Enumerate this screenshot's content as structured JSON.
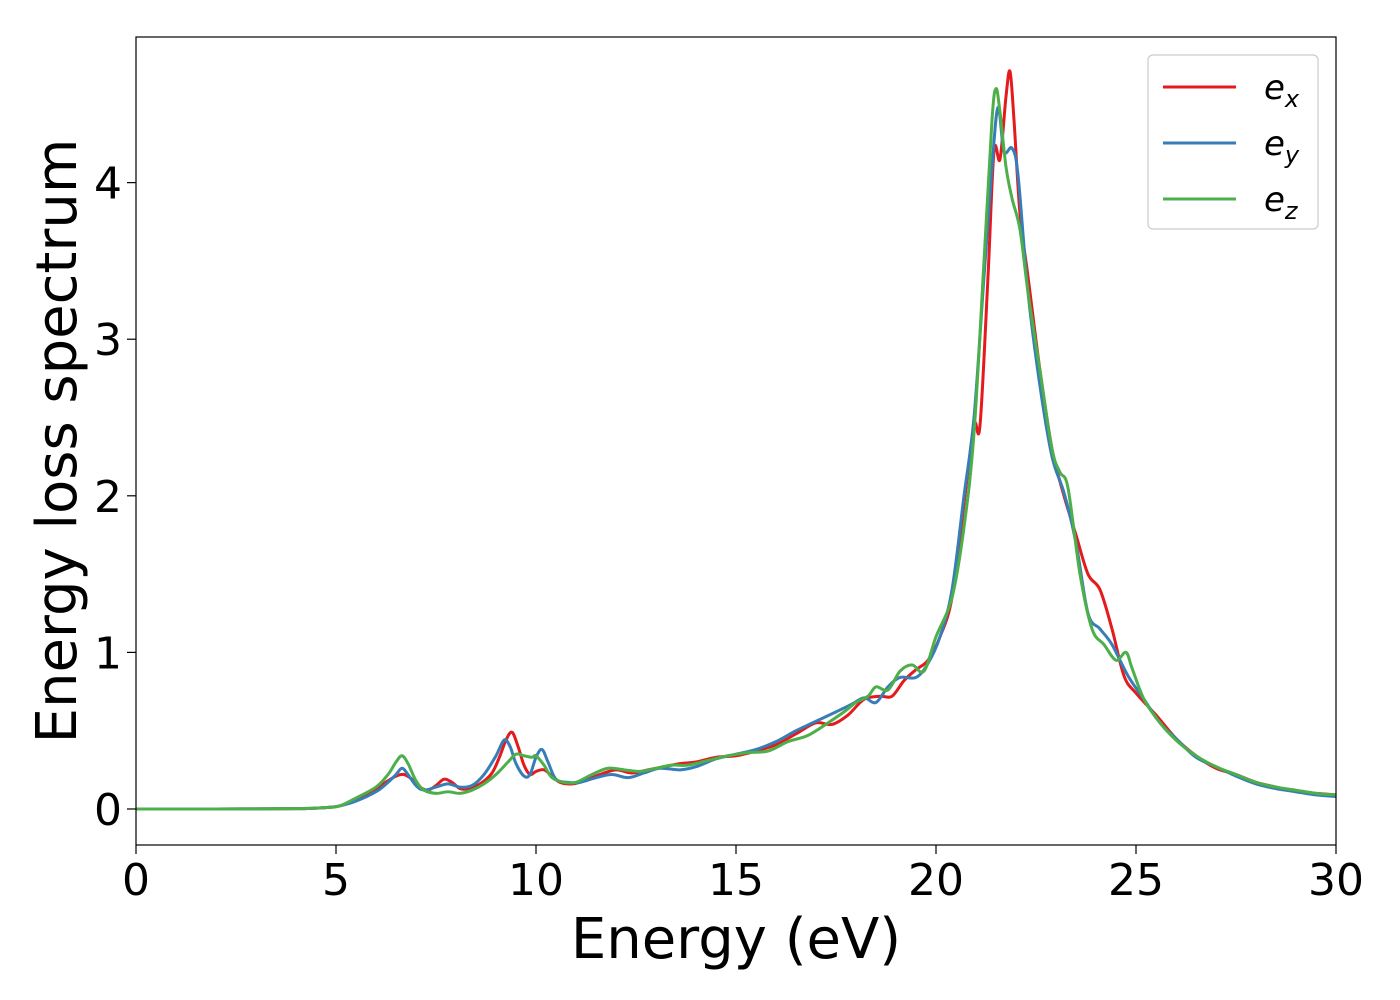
{
  "chart_data": {
    "type": "line",
    "title": "",
    "xlabel": "Energy (eV)",
    "ylabel": "Energy loss spectrum",
    "xlim": [
      0,
      30
    ],
    "ylim": [
      -0.23,
      4.93
    ],
    "xticks": [
      0,
      5,
      10,
      15,
      20,
      25,
      30
    ],
    "yticks": [
      0,
      1,
      2,
      3,
      4
    ],
    "grid": false,
    "legend_position": "top-right",
    "series": [
      {
        "name": "e",
        "subscript": "x",
        "color": "#e41a1c",
        "points": [
          [
            0,
            0
          ],
          [
            2,
            0
          ],
          [
            4,
            0.002
          ],
          [
            4.8,
            0.01
          ],
          [
            5.1,
            0.02
          ],
          [
            5.5,
            0.06
          ],
          [
            6.0,
            0.13
          ],
          [
            6.3,
            0.18
          ],
          [
            6.5,
            0.21
          ],
          [
            6.7,
            0.22
          ],
          [
            6.9,
            0.19
          ],
          [
            7.1,
            0.14
          ],
          [
            7.3,
            0.12
          ],
          [
            7.5,
            0.15
          ],
          [
            7.7,
            0.19
          ],
          [
            7.9,
            0.17
          ],
          [
            8.1,
            0.13
          ],
          [
            8.3,
            0.13
          ],
          [
            8.6,
            0.16
          ],
          [
            8.9,
            0.23
          ],
          [
            9.1,
            0.34
          ],
          [
            9.25,
            0.44
          ],
          [
            9.4,
            0.49
          ],
          [
            9.55,
            0.4
          ],
          [
            9.7,
            0.28
          ],
          [
            9.85,
            0.22
          ],
          [
            10.0,
            0.24
          ],
          [
            10.2,
            0.25
          ],
          [
            10.4,
            0.21
          ],
          [
            10.6,
            0.17
          ],
          [
            10.9,
            0.16
          ],
          [
            11.2,
            0.18
          ],
          [
            11.6,
            0.22
          ],
          [
            12.0,
            0.25
          ],
          [
            12.4,
            0.23
          ],
          [
            12.8,
            0.25
          ],
          [
            13.2,
            0.27
          ],
          [
            13.6,
            0.29
          ],
          [
            14.0,
            0.3
          ],
          [
            14.5,
            0.33
          ],
          [
            15.0,
            0.34
          ],
          [
            15.5,
            0.37
          ],
          [
            16.0,
            0.41
          ],
          [
            16.5,
            0.48
          ],
          [
            17.0,
            0.55
          ],
          [
            17.4,
            0.54
          ],
          [
            17.8,
            0.6
          ],
          [
            18.2,
            0.7
          ],
          [
            18.6,
            0.72
          ],
          [
            18.9,
            0.72
          ],
          [
            19.2,
            0.82
          ],
          [
            19.5,
            0.89
          ],
          [
            19.8,
            0.95
          ],
          [
            20.1,
            1.1
          ],
          [
            20.4,
            1.35
          ],
          [
            20.7,
            1.95
          ],
          [
            20.95,
            2.45
          ],
          [
            21.1,
            2.45
          ],
          [
            21.3,
            3.4
          ],
          [
            21.45,
            4.2
          ],
          [
            21.6,
            4.15
          ],
          [
            21.75,
            4.55
          ],
          [
            21.85,
            4.71
          ],
          [
            21.95,
            4.4
          ],
          [
            22.1,
            3.8
          ],
          [
            22.3,
            3.4
          ],
          [
            22.6,
            2.8
          ],
          [
            22.9,
            2.3
          ],
          [
            23.2,
            2.0
          ],
          [
            23.5,
            1.75
          ],
          [
            23.8,
            1.5
          ],
          [
            24.1,
            1.4
          ],
          [
            24.4,
            1.15
          ],
          [
            24.7,
            0.85
          ],
          [
            25.0,
            0.74
          ],
          [
            25.5,
            0.6
          ],
          [
            26.0,
            0.45
          ],
          [
            26.5,
            0.34
          ],
          [
            27.0,
            0.26
          ],
          [
            27.5,
            0.22
          ],
          [
            28.0,
            0.17
          ],
          [
            28.5,
            0.14
          ],
          [
            29.0,
            0.11
          ],
          [
            29.5,
            0.1
          ],
          [
            30.0,
            0.09
          ]
        ]
      },
      {
        "name": "e",
        "subscript": "y",
        "color": "#377eb8",
        "points": [
          [
            0,
            0
          ],
          [
            2,
            0
          ],
          [
            4,
            0.002
          ],
          [
            4.8,
            0.01
          ],
          [
            5.1,
            0.02
          ],
          [
            5.5,
            0.05
          ],
          [
            6.0,
            0.11
          ],
          [
            6.3,
            0.17
          ],
          [
            6.5,
            0.22
          ],
          [
            6.65,
            0.26
          ],
          [
            6.8,
            0.22
          ],
          [
            7.0,
            0.15
          ],
          [
            7.2,
            0.12
          ],
          [
            7.5,
            0.14
          ],
          [
            7.8,
            0.16
          ],
          [
            8.1,
            0.14
          ],
          [
            8.4,
            0.15
          ],
          [
            8.7,
            0.22
          ],
          [
            9.0,
            0.34
          ],
          [
            9.2,
            0.44
          ],
          [
            9.35,
            0.4
          ],
          [
            9.5,
            0.29
          ],
          [
            9.7,
            0.21
          ],
          [
            9.85,
            0.22
          ],
          [
            10.0,
            0.33
          ],
          [
            10.15,
            0.38
          ],
          [
            10.3,
            0.3
          ],
          [
            10.5,
            0.19
          ],
          [
            10.8,
            0.17
          ],
          [
            11.1,
            0.17
          ],
          [
            11.5,
            0.2
          ],
          [
            11.9,
            0.22
          ],
          [
            12.3,
            0.2
          ],
          [
            12.7,
            0.23
          ],
          [
            13.1,
            0.26
          ],
          [
            13.6,
            0.25
          ],
          [
            14.0,
            0.27
          ],
          [
            14.5,
            0.32
          ],
          [
            15.0,
            0.35
          ],
          [
            15.5,
            0.38
          ],
          [
            16.0,
            0.43
          ],
          [
            16.5,
            0.5
          ],
          [
            17.0,
            0.56
          ],
          [
            17.5,
            0.62
          ],
          [
            17.9,
            0.67
          ],
          [
            18.2,
            0.71
          ],
          [
            18.5,
            0.68
          ],
          [
            18.8,
            0.78
          ],
          [
            19.1,
            0.84
          ],
          [
            19.5,
            0.84
          ],
          [
            19.8,
            0.93
          ],
          [
            20.1,
            1.1
          ],
          [
            20.4,
            1.4
          ],
          [
            20.7,
            2.0
          ],
          [
            20.95,
            2.5
          ],
          [
            21.2,
            3.4
          ],
          [
            21.4,
            4.1
          ],
          [
            21.55,
            4.48
          ],
          [
            21.7,
            4.2
          ],
          [
            21.9,
            4.22
          ],
          [
            22.05,
            4.05
          ],
          [
            22.3,
            3.3
          ],
          [
            22.6,
            2.7
          ],
          [
            22.9,
            2.25
          ],
          [
            23.2,
            2.02
          ],
          [
            23.5,
            1.7
          ],
          [
            23.8,
            1.25
          ],
          [
            24.1,
            1.15
          ],
          [
            24.4,
            1.05
          ],
          [
            24.8,
            0.85
          ],
          [
            25.2,
            0.7
          ],
          [
            25.6,
            0.55
          ],
          [
            26.0,
            0.45
          ],
          [
            26.5,
            0.33
          ],
          [
            27.0,
            0.27
          ],
          [
            27.5,
            0.21
          ],
          [
            28.0,
            0.16
          ],
          [
            28.5,
            0.13
          ],
          [
            29.0,
            0.11
          ],
          [
            29.5,
            0.09
          ],
          [
            30.0,
            0.08
          ]
        ]
      },
      {
        "name": "e",
        "subscript": "z",
        "color": "#4daf4a",
        "points": [
          [
            0,
            0
          ],
          [
            2,
            0
          ],
          [
            4,
            0.002
          ],
          [
            4.8,
            0.01
          ],
          [
            5.1,
            0.02
          ],
          [
            5.5,
            0.07
          ],
          [
            6.0,
            0.14
          ],
          [
            6.3,
            0.22
          ],
          [
            6.5,
            0.3
          ],
          [
            6.65,
            0.34
          ],
          [
            6.8,
            0.29
          ],
          [
            7.0,
            0.18
          ],
          [
            7.2,
            0.12
          ],
          [
            7.5,
            0.1
          ],
          [
            7.8,
            0.11
          ],
          [
            8.1,
            0.1
          ],
          [
            8.4,
            0.12
          ],
          [
            8.7,
            0.16
          ],
          [
            9.0,
            0.22
          ],
          [
            9.3,
            0.3
          ],
          [
            9.5,
            0.35
          ],
          [
            9.7,
            0.34
          ],
          [
            9.9,
            0.33
          ],
          [
            10.0,
            0.34
          ],
          [
            10.2,
            0.28
          ],
          [
            10.4,
            0.2
          ],
          [
            10.7,
            0.17
          ],
          [
            11.0,
            0.17
          ],
          [
            11.4,
            0.22
          ],
          [
            11.8,
            0.26
          ],
          [
            12.2,
            0.25
          ],
          [
            12.6,
            0.24
          ],
          [
            13.0,
            0.26
          ],
          [
            13.4,
            0.28
          ],
          [
            13.8,
            0.28
          ],
          [
            14.3,
            0.31
          ],
          [
            14.8,
            0.34
          ],
          [
            15.3,
            0.36
          ],
          [
            15.8,
            0.37
          ],
          [
            16.3,
            0.43
          ],
          [
            16.8,
            0.47
          ],
          [
            17.3,
            0.55
          ],
          [
            17.7,
            0.62
          ],
          [
            18.0,
            0.68
          ],
          [
            18.3,
            0.72
          ],
          [
            18.5,
            0.78
          ],
          [
            18.8,
            0.76
          ],
          [
            19.1,
            0.88
          ],
          [
            19.4,
            0.92
          ],
          [
            19.7,
            0.88
          ],
          [
            20.0,
            1.1
          ],
          [
            20.4,
            1.35
          ],
          [
            20.7,
            1.8
          ],
          [
            20.95,
            2.4
          ],
          [
            21.2,
            3.5
          ],
          [
            21.4,
            4.4
          ],
          [
            21.5,
            4.6
          ],
          [
            21.6,
            4.45
          ],
          [
            21.75,
            4.1
          ],
          [
            21.9,
            3.9
          ],
          [
            22.1,
            3.7
          ],
          [
            22.3,
            3.3
          ],
          [
            22.6,
            2.8
          ],
          [
            22.9,
            2.3
          ],
          [
            23.1,
            2.15
          ],
          [
            23.3,
            2.05
          ],
          [
            23.6,
            1.5
          ],
          [
            23.9,
            1.15
          ],
          [
            24.2,
            1.05
          ],
          [
            24.5,
            0.95
          ],
          [
            24.75,
            1.0
          ],
          [
            24.9,
            0.9
          ],
          [
            25.2,
            0.7
          ],
          [
            25.6,
            0.55
          ],
          [
            26.0,
            0.44
          ],
          [
            26.5,
            0.34
          ],
          [
            27.0,
            0.27
          ],
          [
            27.5,
            0.22
          ],
          [
            28.0,
            0.17
          ],
          [
            28.5,
            0.14
          ],
          [
            29.0,
            0.12
          ],
          [
            29.5,
            0.1
          ],
          [
            30.0,
            0.09
          ]
        ]
      }
    ]
  }
}
